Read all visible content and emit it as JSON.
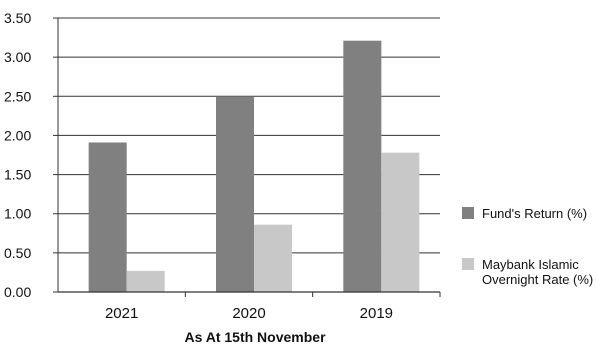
{
  "chart_data": {
    "type": "bar",
    "categories": [
      "2021",
      "2020",
      "2019"
    ],
    "series": [
      {
        "name": "Fund's Return (%)",
        "values": [
          1.91,
          2.5,
          3.21
        ],
        "color": "#808080"
      },
      {
        "name": "Maybank Islamic Overnight Rate (%)",
        "legend_lines": [
          "Maybank Islamic",
          "Overnight Rate (%)"
        ],
        "values": [
          0.27,
          0.86,
          1.78
        ],
        "color": "#c8c8c8"
      }
    ],
    "xlabel": "As At 15th November",
    "ylabel": "",
    "ylim": [
      0,
      3.5
    ],
    "yticks": [
      "0.00",
      "0.50",
      "1.00",
      "1.50",
      "2.00",
      "2.50",
      "3.00",
      "3.50"
    ],
    "grid": true,
    "legend_position": "right"
  }
}
